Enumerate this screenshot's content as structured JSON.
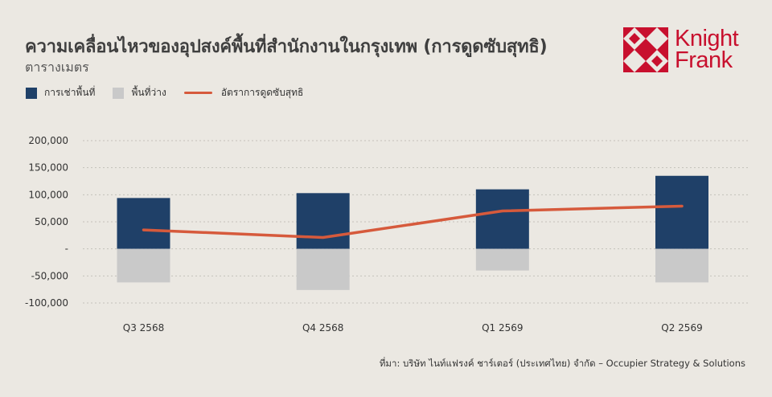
{
  "header": {
    "title": "ความเคลื่อนไหวของอุปสงค์พื้นที่สำนักงานในกรุงเทพ (การดูดซับสุทธิ)",
    "subtitle": "ตารางเมตร"
  },
  "logo": {
    "line1": "Knight",
    "line2": "Frank",
    "color": "#c8102e"
  },
  "source": "ที่มา: บริษัท ไนท์แฟรงค์ ชาร์เตอร์ (ประเทศไทย) จำกัด – Occupier Strategy & Solutions",
  "colors": {
    "occupied": "#1f4068",
    "vacant": "#c9c9c9",
    "absorption": "#d65a3c"
  },
  "chart_data": {
    "type": "bar",
    "categories": [
      "Q3 2568",
      "Q4 2568",
      "Q1 2569",
      "Q2 2569"
    ],
    "series": [
      {
        "name": "การเช่าพื้นที่",
        "kind": "bar",
        "values": [
          94000,
          103000,
          110000,
          135000
        ]
      },
      {
        "name": "พื้นที่ว่าง",
        "kind": "bar",
        "values": [
          -62000,
          -76000,
          -40000,
          -62000
        ]
      },
      {
        "name": "อัตราการดูดซับสุทธิ",
        "kind": "line",
        "values": [
          35000,
          21000,
          70000,
          79000
        ]
      }
    ],
    "ylim": [
      -100000,
      200000
    ],
    "yticks": [
      200000,
      150000,
      100000,
      50000,
      0,
      -50000,
      -100000
    ],
    "ytick_labels": [
      "200,000",
      "150,000",
      "100,000",
      "50,000",
      "-",
      "-50,000",
      "-100,000"
    ],
    "grid": true,
    "legend": "top-left"
  }
}
